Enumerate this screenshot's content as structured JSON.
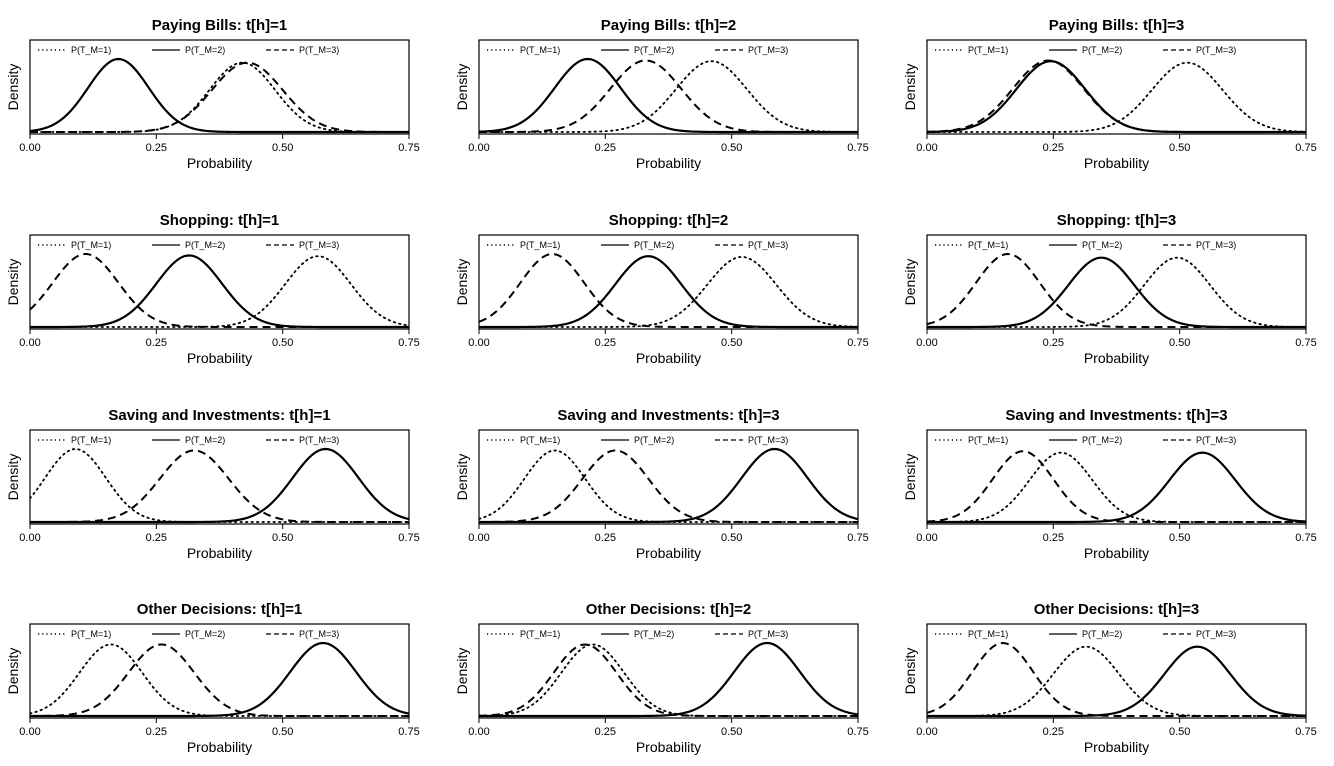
{
  "chart_data": [
    {
      "type": "line",
      "title": "Paying Bills: t[h]=1",
      "xlabel": "Probability",
      "ylabel": "Density",
      "xlim": [
        0,
        0.75
      ],
      "xticks": [
        "0.00",
        "0.25",
        "0.50",
        "0.75"
      ],
      "legend": [
        "P(T_M=1)",
        "P(T_M=2)",
        "P(T_M=3)"
      ],
      "legend_position": "top",
      "series": [
        {
          "name": "P(T_M=1)",
          "style": "dotted",
          "mean": 0.42,
          "sd": 0.065,
          "peak": 0.95
        },
        {
          "name": "P(T_M=2)",
          "style": "solid",
          "mean": 0.175,
          "sd": 0.06,
          "peak": 1.0
        },
        {
          "name": "P(T_M=3)",
          "style": "dashed",
          "mean": 0.43,
          "sd": 0.07,
          "peak": 0.95
        }
      ]
    },
    {
      "type": "line",
      "title": "Paying Bills: t[h]=2",
      "xlabel": "Probability",
      "ylabel": "Density",
      "xlim": [
        0,
        0.75
      ],
      "xticks": [
        "0.00",
        "0.25",
        "0.50",
        "0.75"
      ],
      "legend": [
        "P(T_M=1)",
        "P(T_M=2)",
        "P(T_M=3)"
      ],
      "legend_position": "top",
      "series": [
        {
          "name": "P(T_M=1)",
          "style": "dotted",
          "mean": 0.46,
          "sd": 0.07,
          "peak": 0.97
        },
        {
          "name": "P(T_M=2)",
          "style": "solid",
          "mean": 0.215,
          "sd": 0.065,
          "peak": 1.0
        },
        {
          "name": "P(T_M=3)",
          "style": "dashed",
          "mean": 0.33,
          "sd": 0.07,
          "peak": 0.98
        }
      ]
    },
    {
      "type": "line",
      "title": "Paying Bills: t[h]=3",
      "xlabel": "Probability",
      "ylabel": "Density",
      "xlim": [
        0,
        0.75
      ],
      "xticks": [
        "0.00",
        "0.25",
        "0.50",
        "0.75"
      ],
      "legend": [
        "P(T_M=1)",
        "P(T_M=2)",
        "P(T_M=3)"
      ],
      "legend_position": "top",
      "series": [
        {
          "name": "P(T_M=1)",
          "style": "dotted",
          "mean": 0.515,
          "sd": 0.07,
          "peak": 0.95
        },
        {
          "name": "P(T_M=2)",
          "style": "solid",
          "mean": 0.245,
          "sd": 0.068,
          "peak": 0.97
        },
        {
          "name": "P(T_M=3)",
          "style": "dashed",
          "mean": 0.24,
          "sd": 0.07,
          "peak": 0.98
        }
      ]
    },
    {
      "type": "line",
      "title": "Shopping: t[h]=1",
      "xlabel": "Probability",
      "ylabel": "Density",
      "xlim": [
        0,
        0.75
      ],
      "xticks": [
        "0.00",
        "0.25",
        "0.50",
        "0.75"
      ],
      "legend": [
        "P(T_M=1)",
        "P(T_M=2)",
        "P(T_M=3)"
      ],
      "legend_position": "top",
      "series": [
        {
          "name": "P(T_M=1)",
          "style": "dotted",
          "mean": 0.57,
          "sd": 0.065,
          "peak": 0.97
        },
        {
          "name": "P(T_M=2)",
          "style": "solid",
          "mean": 0.315,
          "sd": 0.065,
          "peak": 0.98
        },
        {
          "name": "P(T_M=3)",
          "style": "dashed",
          "mean": 0.11,
          "sd": 0.065,
          "peak": 1.0
        }
      ]
    },
    {
      "type": "line",
      "title": "Shopping: t[h]=2",
      "xlabel": "Probability",
      "ylabel": "Density",
      "xlim": [
        0,
        0.75
      ],
      "xticks": [
        "0.00",
        "0.25",
        "0.50",
        "0.75"
      ],
      "legend": [
        "P(T_M=1)",
        "P(T_M=2)",
        "P(T_M=3)"
      ],
      "legend_position": "top",
      "series": [
        {
          "name": "P(T_M=1)",
          "style": "dotted",
          "mean": 0.52,
          "sd": 0.068,
          "peak": 0.96
        },
        {
          "name": "P(T_M=2)",
          "style": "solid",
          "mean": 0.335,
          "sd": 0.065,
          "peak": 0.97
        },
        {
          "name": "P(T_M=3)",
          "style": "dashed",
          "mean": 0.145,
          "sd": 0.063,
          "peak": 1.0
        }
      ]
    },
    {
      "type": "line",
      "title": "Shopping: t[h]=3",
      "xlabel": "Probability",
      "ylabel": "Density",
      "xlim": [
        0,
        0.75
      ],
      "xticks": [
        "0.00",
        "0.25",
        "0.50",
        "0.75"
      ],
      "legend": [
        "P(T_M=1)",
        "P(T_M=2)",
        "P(T_M=3)"
      ],
      "legend_position": "top",
      "series": [
        {
          "name": "P(T_M=1)",
          "style": "dotted",
          "mean": 0.495,
          "sd": 0.065,
          "peak": 0.95
        },
        {
          "name": "P(T_M=2)",
          "style": "solid",
          "mean": 0.345,
          "sd": 0.065,
          "peak": 0.95
        },
        {
          "name": "P(T_M=3)",
          "style": "dashed",
          "mean": 0.16,
          "sd": 0.063,
          "peak": 1.0
        }
      ]
    },
    {
      "type": "line",
      "title": "Saving and Investments: t[h]=1",
      "xlabel": "Probability",
      "ylabel": "Density",
      "xlim": [
        0,
        0.75
      ],
      "xticks": [
        "0.00",
        "0.25",
        "0.50",
        "0.75"
      ],
      "legend": [
        "P(T_M=1)",
        "P(T_M=2)",
        "P(T_M=3)"
      ],
      "legend_position": "top",
      "series": [
        {
          "name": "P(T_M=1)",
          "style": "dotted",
          "mean": 0.09,
          "sd": 0.06,
          "peak": 1.0
        },
        {
          "name": "P(T_M=2)",
          "style": "solid",
          "mean": 0.585,
          "sd": 0.065,
          "peak": 1.0
        },
        {
          "name": "P(T_M=3)",
          "style": "dashed",
          "mean": 0.325,
          "sd": 0.068,
          "peak": 0.98
        }
      ]
    },
    {
      "type": "line",
      "title": "Saving and Investments: t[h]=3",
      "xlabel": "Probability",
      "ylabel": "Density",
      "xlim": [
        0,
        0.75
      ],
      "xticks": [
        "0.00",
        "0.25",
        "0.50",
        "0.75"
      ],
      "legend": [
        "P(T_M=1)",
        "P(T_M=2)",
        "P(T_M=3)"
      ],
      "legend_position": "top",
      "series": [
        {
          "name": "P(T_M=1)",
          "style": "dotted",
          "mean": 0.15,
          "sd": 0.06,
          "peak": 0.98
        },
        {
          "name": "P(T_M=2)",
          "style": "solid",
          "mean": 0.585,
          "sd": 0.065,
          "peak": 1.0
        },
        {
          "name": "P(T_M=3)",
          "style": "dashed",
          "mean": 0.27,
          "sd": 0.065,
          "peak": 0.98
        }
      ]
    },
    {
      "type": "line",
      "title": "Saving and Investments: t[h]=3",
      "xlabel": "Probability",
      "ylabel": "Density",
      "xlim": [
        0,
        0.75
      ],
      "xticks": [
        "0.00",
        "0.25",
        "0.50",
        "0.75"
      ],
      "legend": [
        "P(T_M=1)",
        "P(T_M=2)",
        "P(T_M=3)"
      ],
      "legend_position": "top",
      "series": [
        {
          "name": "P(T_M=1)",
          "style": "dotted",
          "mean": 0.265,
          "sd": 0.062,
          "peak": 0.95
        },
        {
          "name": "P(T_M=2)",
          "style": "solid",
          "mean": 0.545,
          "sd": 0.065,
          "peak": 0.95
        },
        {
          "name": "P(T_M=3)",
          "style": "dashed",
          "mean": 0.19,
          "sd": 0.06,
          "peak": 0.97
        }
      ]
    },
    {
      "type": "line",
      "title": "Other Decisions: t[h]=1",
      "xlabel": "Probability",
      "ylabel": "Density",
      "xlim": [
        0,
        0.75
      ],
      "xticks": [
        "0.00",
        "0.25",
        "0.50",
        "0.75"
      ],
      "legend": [
        "P(T_M=1)",
        "P(T_M=2)",
        "P(T_M=3)"
      ],
      "legend_position": "top",
      "series": [
        {
          "name": "P(T_M=1)",
          "style": "dotted",
          "mean": 0.16,
          "sd": 0.062,
          "peak": 0.98
        },
        {
          "name": "P(T_M=2)",
          "style": "solid",
          "mean": 0.58,
          "sd": 0.065,
          "peak": 1.0
        },
        {
          "name": "P(T_M=3)",
          "style": "dashed",
          "mean": 0.26,
          "sd": 0.065,
          "peak": 0.98
        }
      ]
    },
    {
      "type": "line",
      "title": "Other Decisions: t[h]=2",
      "xlabel": "Probability",
      "ylabel": "Density",
      "xlim": [
        0,
        0.75
      ],
      "xticks": [
        "0.00",
        "0.25",
        "0.50",
        "0.75"
      ],
      "legend": [
        "P(T_M=1)",
        "P(T_M=2)",
        "P(T_M=3)"
      ],
      "legend_position": "top",
      "series": [
        {
          "name": "P(T_M=1)",
          "style": "dotted",
          "mean": 0.225,
          "sd": 0.062,
          "peak": 0.98
        },
        {
          "name": "P(T_M=2)",
          "style": "solid",
          "mean": 0.57,
          "sd": 0.065,
          "peak": 1.0
        },
        {
          "name": "P(T_M=3)",
          "style": "dashed",
          "mean": 0.21,
          "sd": 0.062,
          "peak": 0.98
        }
      ]
    },
    {
      "type": "line",
      "title": "Other Decisions: t[h]=3",
      "xlabel": "Probability",
      "ylabel": "Density",
      "xlim": [
        0,
        0.75
      ],
      "xticks": [
        "0.00",
        "0.25",
        "0.50",
        "0.75"
      ],
      "legend": [
        "P(T_M=1)",
        "P(T_M=2)",
        "P(T_M=3)"
      ],
      "legend_position": "top",
      "series": [
        {
          "name": "P(T_M=1)",
          "style": "dotted",
          "mean": 0.315,
          "sd": 0.065,
          "peak": 0.95
        },
        {
          "name": "P(T_M=2)",
          "style": "solid",
          "mean": 0.535,
          "sd": 0.065,
          "peak": 0.95
        },
        {
          "name": "P(T_M=3)",
          "style": "dashed",
          "mean": 0.15,
          "sd": 0.06,
          "peak": 1.0
        }
      ]
    }
  ]
}
